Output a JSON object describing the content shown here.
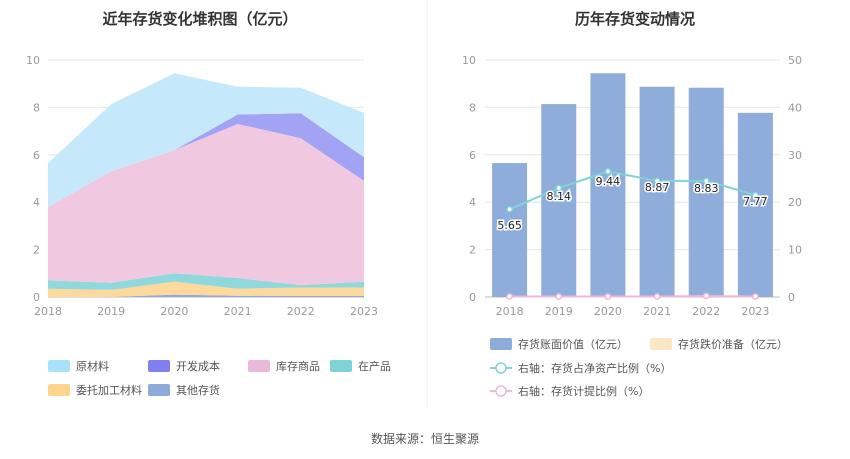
{
  "source": "数据来源：恒生聚源",
  "chart_data": [
    {
      "type": "area",
      "stacked": true,
      "title": "近年存货变化堆积图（亿元）",
      "categories": [
        "2018",
        "2019",
        "2020",
        "2021",
        "2022",
        "2023"
      ],
      "ylim": [
        0,
        10
      ],
      "yticks": [
        "0",
        "2",
        "4",
        "6",
        "8",
        "10"
      ],
      "grid": true,
      "legend_position": "bottom",
      "series": [
        {
          "name": "其他存货",
          "color": "#8eaadb",
          "values": [
            0.0,
            0.0,
            0.1,
            0.05,
            0.05,
            0.05
          ]
        },
        {
          "name": "委托加工材料",
          "color": "#fdd99b",
          "values": [
            0.35,
            0.3,
            0.55,
            0.3,
            0.35,
            0.35
          ]
        },
        {
          "name": "在产品",
          "color": "#8fd9dc",
          "values": [
            0.35,
            0.3,
            0.35,
            0.45,
            0.1,
            0.25
          ]
        },
        {
          "name": "库存商品",
          "color": "#f0c8e0",
          "values": [
            3.1,
            4.7,
            5.2,
            6.5,
            6.2,
            4.25
          ]
        },
        {
          "name": "开发成本",
          "color": "#a3a3f5",
          "values": [
            0.0,
            0.0,
            0.0,
            0.4,
            1.05,
            1.0
          ]
        },
        {
          "name": "原材料",
          "color": "#c5e9fb",
          "values": [
            1.85,
            2.84,
            3.24,
            1.17,
            1.08,
            1.87
          ]
        }
      ],
      "legend": [
        {
          "name": "原材料",
          "color": "#a9e1fa"
        },
        {
          "name": "开发成本",
          "color": "#7f7ff0"
        },
        {
          "name": "库存商品",
          "color": "#e9b9d9"
        },
        {
          "name": "在产品",
          "color": "#7dd3d6"
        },
        {
          "name": "委托加工材料",
          "color": "#fdd48e"
        },
        {
          "name": "其他存货",
          "color": "#8eaadb"
        }
      ]
    },
    {
      "type": "bar",
      "title": "历年存货变动情况",
      "categories": [
        "2018",
        "2019",
        "2020",
        "2021",
        "2022",
        "2023"
      ],
      "ylim": [
        0,
        10
      ],
      "yticks": [
        "0",
        "2",
        "4",
        "6",
        "8",
        "10"
      ],
      "y2lim": [
        0,
        50
      ],
      "y2ticks": [
        "0",
        "10",
        "20",
        "30",
        "40",
        "50"
      ],
      "grid": true,
      "legend_position": "bottom",
      "series": [
        {
          "name": "存货账面价值（亿元）",
          "type": "bar",
          "axis": "left",
          "color": "#8eaddb",
          "values": [
            5.65,
            8.14,
            9.44,
            8.87,
            8.83,
            7.77
          ],
          "labels": [
            "5.65",
            "8.14",
            "9.44",
            "8.87",
            "8.83",
            "7.77"
          ]
        },
        {
          "name": "存货跌价准备（亿元）",
          "type": "bar",
          "axis": "left",
          "color": "#fde6c4",
          "values": [
            0,
            0,
            0,
            0,
            0,
            0
          ]
        },
        {
          "name": "右轴：存货占净资产比例（%）",
          "type": "line",
          "axis": "right",
          "color": "#7fd3d6",
          "values": [
            18.5,
            23.0,
            26.5,
            24.5,
            24.5,
            21.5
          ]
        },
        {
          "name": "右轴：存货计提比例（%）",
          "type": "line",
          "axis": "right",
          "color": "#f0b8d8",
          "values": [
            0.1,
            0.1,
            0.1,
            0.1,
            0.2,
            0.1
          ]
        }
      ]
    }
  ]
}
